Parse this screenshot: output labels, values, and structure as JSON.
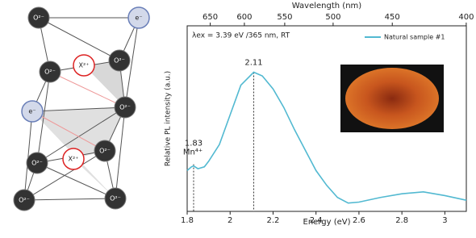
{
  "diagram": {
    "nodes": [
      {
        "label": "O²⁻"
      },
      {
        "label": "e⁻"
      },
      {
        "label": "O²⁻"
      },
      {
        "label": "X²⁺"
      },
      {
        "label": "O²⁻"
      },
      {
        "label": "e⁻"
      },
      {
        "label": "O²⁻"
      },
      {
        "label": "O²⁻"
      },
      {
        "label": "X²⁺"
      },
      {
        "label": "O²⁻"
      },
      {
        "label": "O²⁻"
      },
      {
        "label": "O²⁻"
      }
    ]
  },
  "chart_data": {
    "type": "line",
    "xlabel": "Energy (eV)",
    "ylabel": "Relative PL intensity (a.u.)",
    "x2label": "Wavelength (nm)",
    "annotation": "λex = 3.39 eV /365 nm, RT",
    "xlim": [
      1.8,
      3.1
    ],
    "xticks": [
      1.8,
      2.0,
      2.2,
      2.4,
      2.6,
      2.8,
      3.0
    ],
    "x2ticks": [
      650,
      600,
      550,
      500,
      450,
      400
    ],
    "ylim": [
      0,
      1
    ],
    "vlines": [
      2.11,
      1.83
    ],
    "vline_note": "Mn⁴⁺",
    "legend": "upper right",
    "x": [
      1.8,
      1.82,
      1.83,
      1.85,
      1.88,
      1.9,
      1.95,
      2.0,
      2.05,
      2.11,
      2.15,
      2.2,
      2.25,
      2.3,
      2.35,
      2.4,
      2.45,
      2.5,
      2.55,
      2.6,
      2.7,
      2.8,
      2.9,
      3.0,
      3.1
    ],
    "series": [
      {
        "name": "Natural sample #1",
        "color": "#52b9d1",
        "values": [
          0.22,
          0.24,
          0.245,
          0.23,
          0.24,
          0.27,
          0.36,
          0.52,
          0.68,
          0.75,
          0.73,
          0.66,
          0.56,
          0.44,
          0.33,
          0.22,
          0.14,
          0.075,
          0.045,
          0.05,
          0.075,
          0.095,
          0.105,
          0.085,
          0.06
        ]
      }
    ]
  }
}
